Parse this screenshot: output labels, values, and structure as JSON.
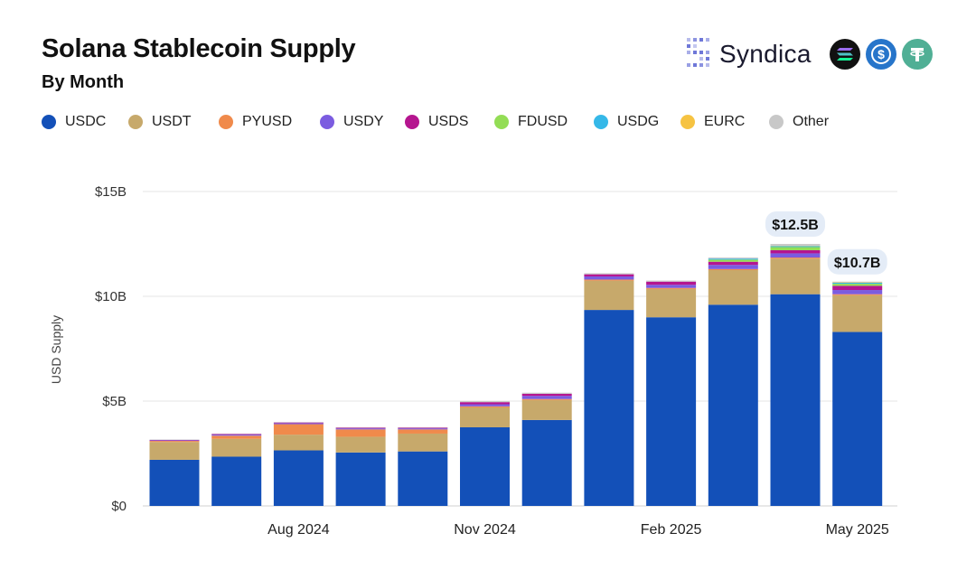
{
  "header": {
    "title": "Solana Stablecoin Supply",
    "subtitle": "By Month"
  },
  "brand": {
    "name": "Syndica",
    "icons": [
      "syndica-logo-icon",
      "solana-coin-icon",
      "usdc-coin-icon",
      "tether-coin-icon"
    ]
  },
  "chart_data": {
    "type": "bar",
    "stacked": true,
    "title": "Solana Stablecoin Supply",
    "subtitle": "By Month",
    "ylabel": "USD Supply",
    "xlabel": "",
    "ylim": [
      0,
      15
    ],
    "unit": "B",
    "yticks": [
      "$0",
      "$5B",
      "$10B",
      "$15B"
    ],
    "grid": true,
    "legend_position": "top-left",
    "categories": [
      "Jun 2024",
      "Jul 2024",
      "Aug 2024",
      "Sep 2024",
      "Oct 2024",
      "Nov 2024",
      "Dec 2024",
      "Jan 2025",
      "Feb 2025",
      "Mar 2025",
      "Apr 2025",
      "May 2025"
    ],
    "x_tick_labels": [
      {
        "index": 2,
        "label": "Aug 2024"
      },
      {
        "index": 5,
        "label": "Nov 2024"
      },
      {
        "index": 8,
        "label": "Feb 2025"
      },
      {
        "index": 11,
        "label": "May 2025"
      }
    ],
    "series": [
      {
        "name": "USDC",
        "color": "#1350b8",
        "values": [
          2.2,
          2.35,
          2.65,
          2.55,
          2.6,
          3.75,
          4.1,
          9.35,
          9.0,
          9.6,
          10.1,
          8.3
        ]
      },
      {
        "name": "USDT",
        "color": "#c7a96b",
        "values": [
          0.85,
          0.85,
          0.75,
          0.75,
          0.85,
          0.95,
          0.95,
          1.4,
          1.35,
          1.65,
          1.7,
          1.75
        ]
      },
      {
        "name": "PYUSD",
        "color": "#f08a4b",
        "values": [
          0.05,
          0.15,
          0.5,
          0.35,
          0.2,
          0.05,
          0.05,
          0.05,
          0.05,
          0.05,
          0.05,
          0.05
        ]
      },
      {
        "name": "USDY",
        "color": "#7b5ce0",
        "values": [
          0.03,
          0.05,
          0.05,
          0.05,
          0.05,
          0.1,
          0.15,
          0.15,
          0.15,
          0.2,
          0.2,
          0.2
        ]
      },
      {
        "name": "USDS",
        "color": "#b5158f",
        "values": [
          0.02,
          0.03,
          0.03,
          0.03,
          0.03,
          0.1,
          0.1,
          0.1,
          0.15,
          0.15,
          0.15,
          0.2
        ]
      },
      {
        "name": "FDUSD",
        "color": "#93dd55",
        "values": [
          0.0,
          0.0,
          0.0,
          0.0,
          0.0,
          0.0,
          0.0,
          0.0,
          0.0,
          0.1,
          0.15,
          0.1
        ]
      },
      {
        "name": "USDG",
        "color": "#35b8e8",
        "values": [
          0.0,
          0.0,
          0.0,
          0.0,
          0.0,
          0.0,
          0.0,
          0.0,
          0.0,
          0.05,
          0.05,
          0.05
        ]
      },
      {
        "name": "EURC",
        "color": "#f6c342",
        "values": [
          0.0,
          0.0,
          0.0,
          0.0,
          0.0,
          0.0,
          0.0,
          0.0,
          0.0,
          0.0,
          0.02,
          0.02
        ]
      },
      {
        "name": "Other",
        "color": "#c8c8c8",
        "values": [
          0.02,
          0.02,
          0.02,
          0.02,
          0.02,
          0.05,
          0.05,
          0.05,
          0.05,
          0.05,
          0.08,
          0.03
        ]
      }
    ],
    "annotations": [
      {
        "index": 10,
        "label": "$12.5B"
      },
      {
        "index": 11,
        "label": "$10.7B"
      }
    ]
  }
}
